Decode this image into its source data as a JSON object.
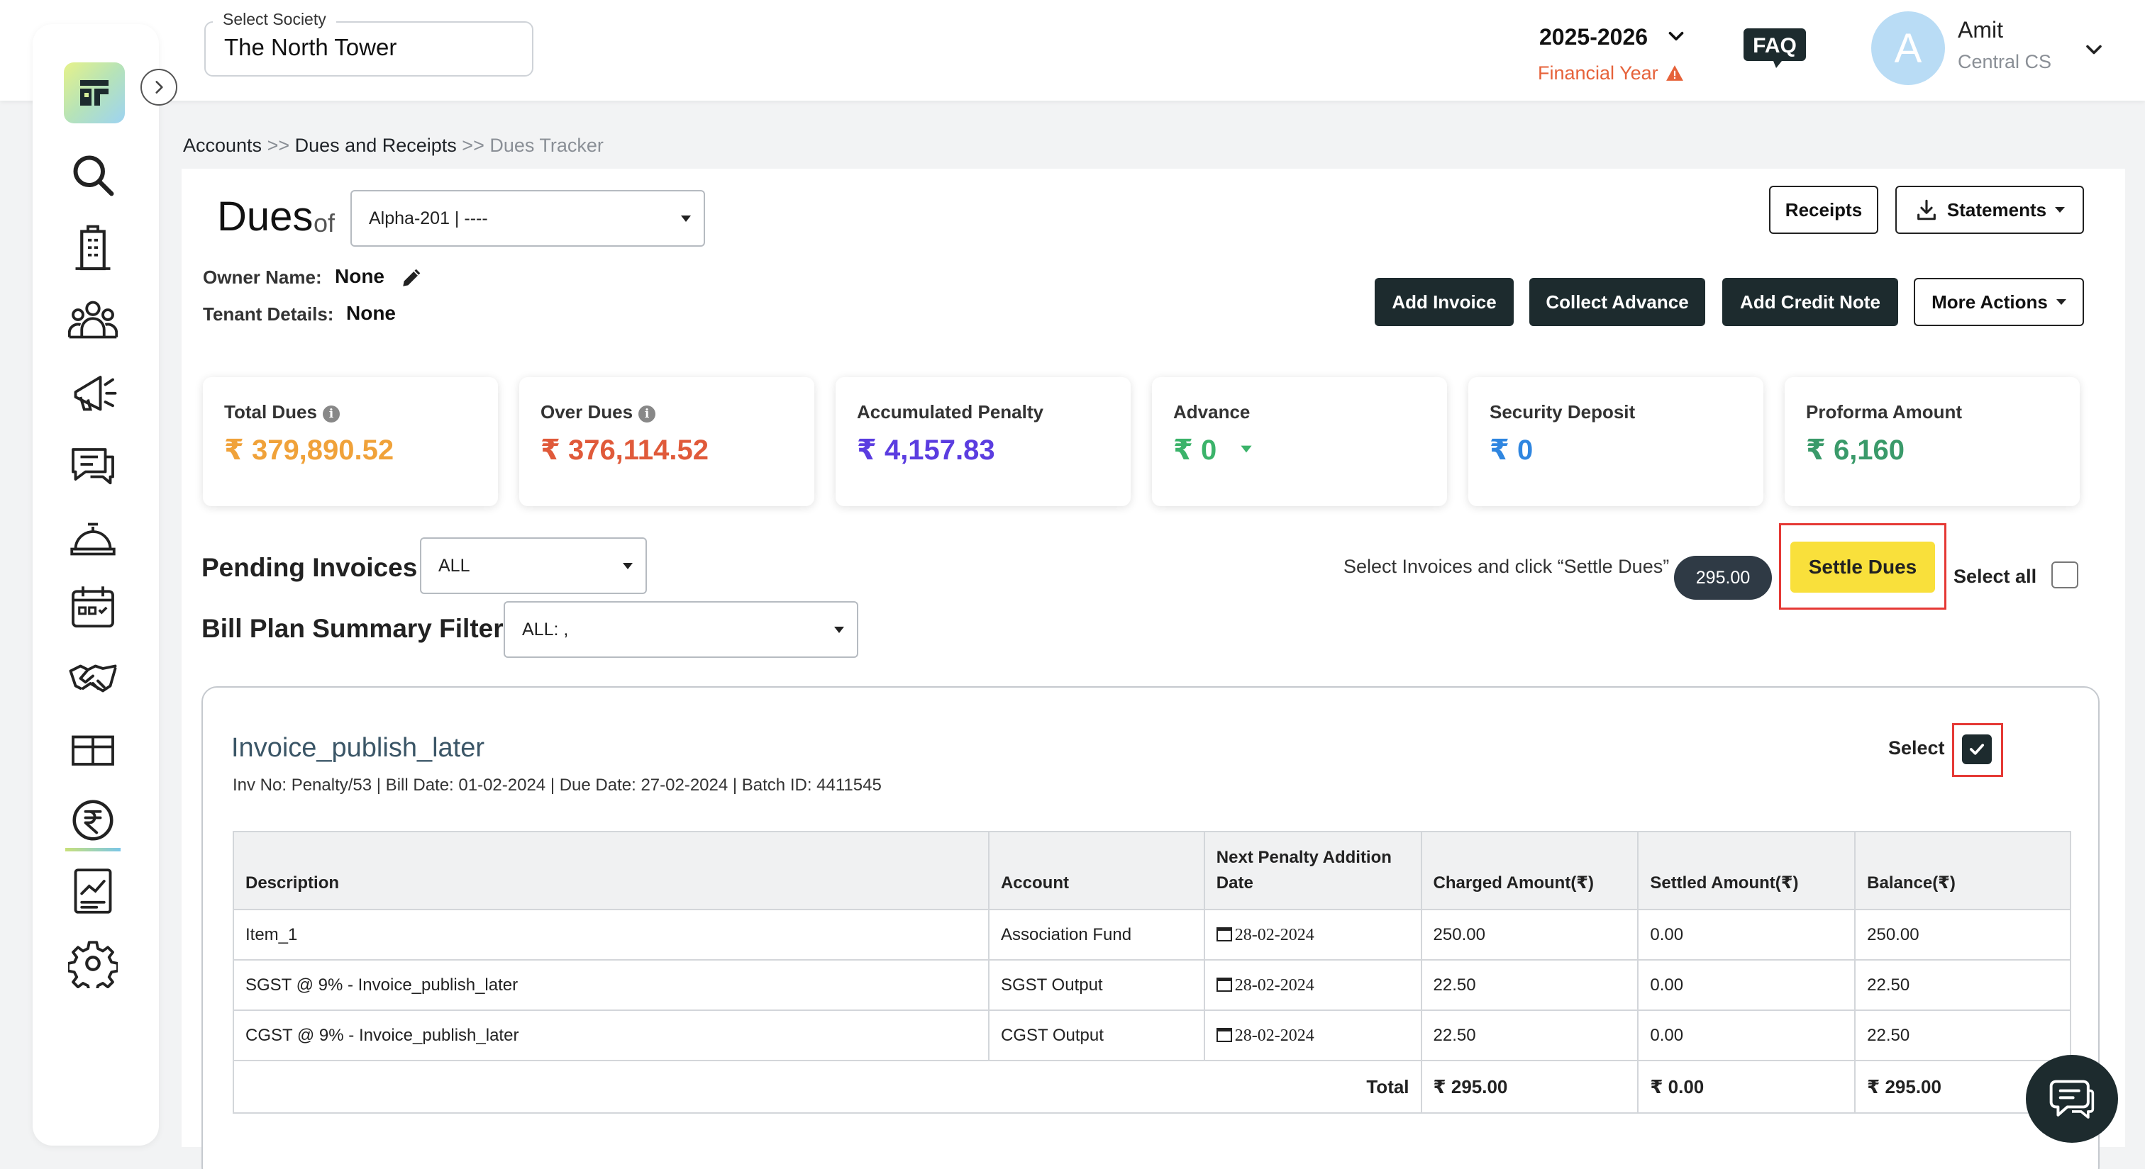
{
  "header": {
    "society_label": "Select Society",
    "society_value": "The North Tower",
    "financial_year_value": "2025-2026",
    "financial_year_label": "Financial Year",
    "faq_label": "FAQ",
    "user": {
      "initial": "A",
      "name": "Amit",
      "role": "Central CS"
    }
  },
  "sidebar": {
    "items": [
      {
        "name": "search",
        "icon": "search-icon"
      },
      {
        "name": "buildings",
        "icon": "building-icon"
      },
      {
        "name": "members",
        "icon": "people-icon"
      },
      {
        "name": "announcements",
        "icon": "megaphone-icon"
      },
      {
        "name": "helpdesk",
        "icon": "chat-icon"
      },
      {
        "name": "facilities",
        "icon": "service-bell-icon"
      },
      {
        "name": "calendar",
        "icon": "calendar-icon"
      },
      {
        "name": "vendors",
        "icon": "handshake-icon"
      },
      {
        "name": "assets",
        "icon": "box-icon"
      },
      {
        "name": "accounts",
        "icon": "rupee-icon",
        "active": true
      },
      {
        "name": "reports",
        "icon": "report-chart-icon"
      },
      {
        "name": "settings",
        "icon": "gear-icon"
      }
    ]
  },
  "breadcrumb": {
    "items": [
      "Accounts",
      "Dues and Receipts",
      "Dues Tracker"
    ],
    "separator": ">>"
  },
  "dues": {
    "title": "Dues",
    "of": "of",
    "unit_select": "Alpha-201 | ----",
    "owner_label": "Owner Name:",
    "owner_value": "None",
    "tenant_label": "Tenant Details:",
    "tenant_value": "None"
  },
  "actions": {
    "receipts": "Receipts",
    "statements": "Statements",
    "add_invoice": "Add Invoice",
    "collect_advance": "Collect Advance",
    "add_credit_note": "Add Credit Note",
    "more_actions": "More Actions"
  },
  "cards": [
    {
      "label": "Total Dues",
      "value": "₹ 379,890.52",
      "color": "#f0a23a",
      "info": true
    },
    {
      "label": "Over Dues",
      "value": "₹ 376,114.52",
      "color": "#e05a3a",
      "info": true
    },
    {
      "label": "Accumulated Penalty",
      "value": "₹ 4,157.83",
      "color": "#5b3de0"
    },
    {
      "label": "Advance",
      "value": "₹ 0",
      "color": "#3bb36a",
      "caret": true
    },
    {
      "label": "Security Deposit",
      "value": "₹ 0",
      "color": "#2f86e0"
    },
    {
      "label": "Proforma Amount",
      "value": "₹ 6,160",
      "color": "#3a9a6a"
    }
  ],
  "pending": {
    "title": "Pending Invoices",
    "filter_value": "ALL",
    "billplan_title": "Bill Plan Summary Filter",
    "billplan_value": "ALL: ,",
    "hint": "Select Invoices and click “Settle Dues”",
    "selected_total": "295.00",
    "settle_label": "Settle Dues",
    "select_all_label": "Select all"
  },
  "invoice": {
    "title": "Invoice_publish_later",
    "meta": "Inv No: Penalty/53 | Bill Date: 01-02-2024 | Due Date: 27-02-2024 | Batch ID: 4411545",
    "select_label": "Select",
    "selected": true,
    "columns": [
      "Description",
      "Account",
      "Next Penalty Addition Date",
      "Charged Amount(₹)",
      "Settled Amount(₹)",
      "Balance(₹)"
    ],
    "rows": [
      {
        "description": "Item_1",
        "account": "Association Fund",
        "date": "28-02-2024",
        "charged": "250.00",
        "settled": "0.00",
        "balance": "250.00"
      },
      {
        "description": "SGST @ 9% - Invoice_publish_later",
        "account": "SGST Output",
        "date": "28-02-2024",
        "charged": "22.50",
        "settled": "0.00",
        "balance": "22.50"
      },
      {
        "description": "CGST @ 9% - Invoice_publish_later",
        "account": "CGST Output",
        "date": "28-02-2024",
        "charged": "22.50",
        "settled": "0.00",
        "balance": "22.50"
      }
    ],
    "total_label": "Total",
    "total_charged": "₹ 295.00",
    "total_settled": "₹ 0.00",
    "total_balance": "₹ 295.00"
  }
}
